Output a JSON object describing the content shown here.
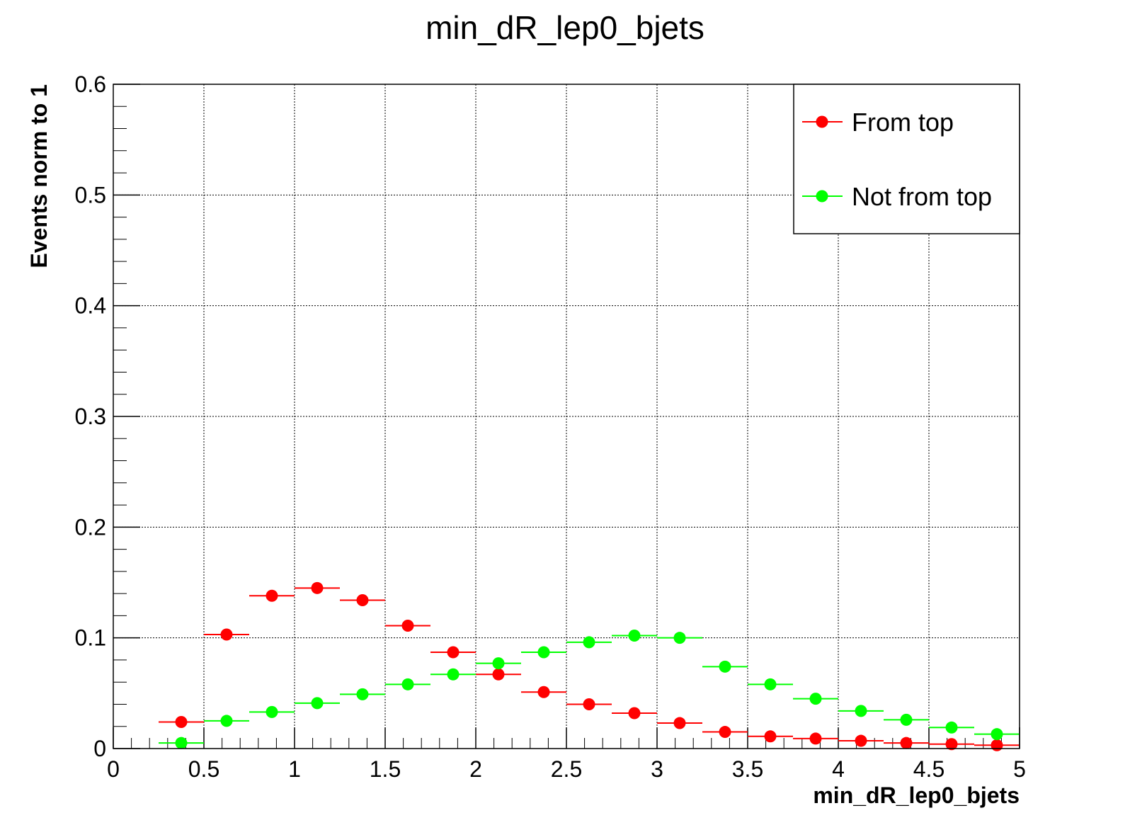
{
  "chart_data": {
    "type": "scatter",
    "title": "min_dR_lep0_bjets",
    "xlabel": "min_dR_lep0_bjets",
    "ylabel": "Events norm to 1",
    "xlim": [
      0,
      5
    ],
    "ylim": [
      0,
      0.6
    ],
    "grid": true,
    "legend_position": "top-right",
    "bin_edges": [
      0.25,
      0.5,
      0.75,
      1.0,
      1.25,
      1.5,
      1.75,
      2.0,
      2.25,
      2.5,
      2.75,
      3.0,
      3.25,
      3.5,
      3.75,
      4.0,
      4.25,
      4.5,
      4.75,
      5.0
    ],
    "x_ticks": [
      "0",
      "0.5",
      "1",
      "1.5",
      "2",
      "2.5",
      "3",
      "3.5",
      "4",
      "4.5",
      "5"
    ],
    "y_ticks": [
      "0",
      "0.1",
      "0.2",
      "0.3",
      "0.4",
      "0.5",
      "0.6"
    ],
    "series": [
      {
        "name": "From top",
        "color": "#ff0000",
        "x": [
          0.375,
          0.625,
          0.875,
          1.125,
          1.375,
          1.625,
          1.875,
          2.125,
          2.375,
          2.625,
          2.875,
          3.125,
          3.375,
          3.625,
          3.875,
          4.125,
          4.375,
          4.625,
          4.875
        ],
        "values": [
          0.024,
          0.103,
          0.138,
          0.145,
          0.134,
          0.111,
          0.087,
          0.067,
          0.051,
          0.04,
          0.032,
          0.023,
          0.015,
          0.011,
          0.009,
          0.007,
          0.005,
          0.004,
          0.003
        ]
      },
      {
        "name": "Not from top",
        "color": "#00ff00",
        "x": [
          0.375,
          0.625,
          0.875,
          1.125,
          1.375,
          1.625,
          1.875,
          2.125,
          2.375,
          2.625,
          2.875,
          3.125,
          3.375,
          3.625,
          3.875,
          4.125,
          4.375,
          4.625,
          4.875
        ],
        "values": [
          0.005,
          0.025,
          0.033,
          0.041,
          0.049,
          0.058,
          0.067,
          0.077,
          0.087,
          0.096,
          0.102,
          0.1,
          0.074,
          0.058,
          0.045,
          0.034,
          0.026,
          0.019,
          0.013
        ]
      }
    ]
  }
}
